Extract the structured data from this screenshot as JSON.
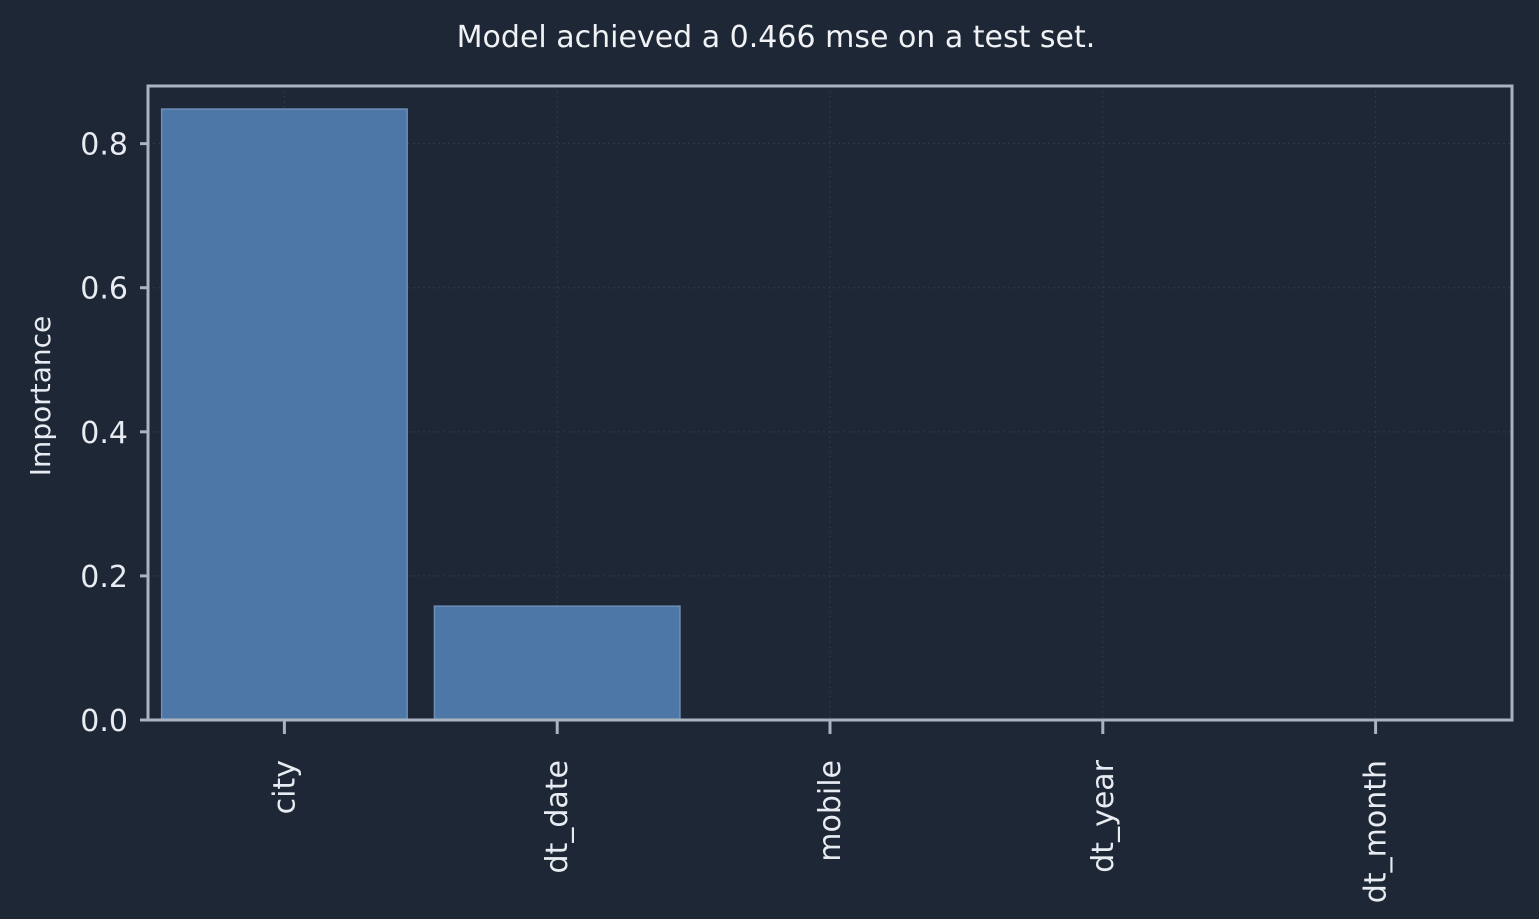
{
  "colors": {
    "background": "#1e2735",
    "bar": "#4d77a6",
    "frame": "#aab3bf",
    "grid": "#2f3a4a",
    "text": "#e8ecf2"
  },
  "chart_data": {
    "type": "bar",
    "title": "Model achieved a 0.466 mse on a test set.",
    "xlabel": "",
    "ylabel": "Importance",
    "categories": [
      "city",
      "dt_date",
      "mobile",
      "dt_year",
      "dt_month"
    ],
    "values": [
      0.848,
      0.158,
      0.0,
      0.0,
      0.0
    ],
    "ylim": [
      0,
      0.88
    ],
    "yticks": [
      0.0,
      0.2,
      0.4,
      0.6,
      0.8
    ],
    "ytick_labels": [
      "0.0",
      "0.2",
      "0.4",
      "0.6",
      "0.8"
    ],
    "grid": true,
    "legend": "none"
  }
}
